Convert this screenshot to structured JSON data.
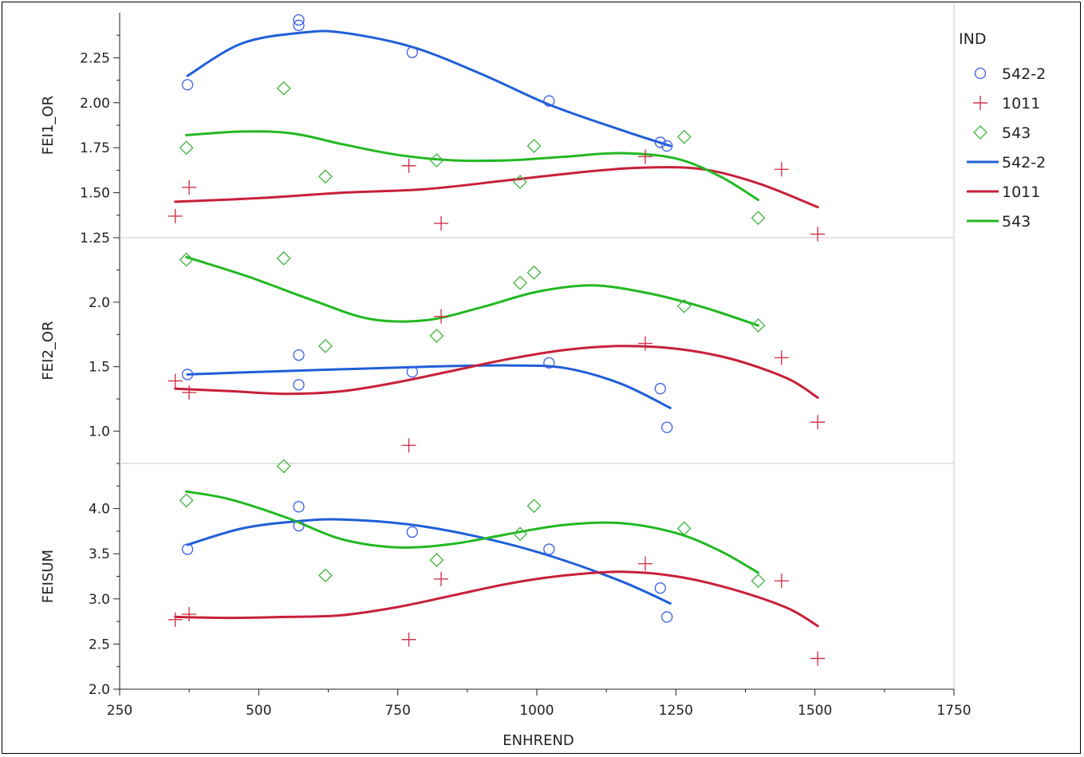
{
  "chart_data": {
    "type": "scatter",
    "xlabel": "ENHREND",
    "xlim": [
      250,
      1750
    ],
    "xticks": [
      "250",
      "500",
      "750",
      "1000",
      "1250",
      "1500",
      "1750"
    ],
    "legend": {
      "title": "IND",
      "placement": "right",
      "entries": [
        {
          "label": "542-2",
          "kind": "marker",
          "marker": "circle",
          "color": "#3b5ee6"
        },
        {
          "label": "1011",
          "kind": "marker",
          "marker": "plus",
          "color": "#d0364b"
        },
        {
          "label": "543",
          "kind": "marker",
          "marker": "diamond",
          "color": "#3fb43f"
        },
        {
          "label": "542-2",
          "kind": "line",
          "color": "#1f5fd8"
        },
        {
          "label": "1011",
          "kind": "line",
          "color": "#c8203a"
        },
        {
          "label": "543",
          "kind": "line",
          "color": "#22b822"
        }
      ]
    },
    "panels": [
      {
        "ylabel": "FEI1_OR",
        "ylim": [
          1.25,
          2.5
        ],
        "yticks": [
          "1.25",
          "1.50",
          "1.75",
          "2.00",
          "2.25"
        ],
        "series": [
          {
            "name": "542-2",
            "marker": "circle",
            "color": "#3b5ee6",
            "points": [
              [
                372,
                2.1
              ],
              [
                572,
                2.43
              ],
              [
                572,
                2.46
              ],
              [
                776,
                2.28
              ],
              [
                1022,
                2.01
              ],
              [
                1222,
                1.78
              ],
              [
                1234,
                1.76
              ]
            ],
            "fit": [
              [
                372,
                2.15
              ],
              [
                470,
                2.33
              ],
              [
                580,
                2.39
              ],
              [
                650,
                2.39
              ],
              [
                776,
                2.31
              ],
              [
                900,
                2.16
              ],
              [
                1022,
                1.99
              ],
              [
                1150,
                1.85
              ],
              [
                1240,
                1.76
              ]
            ]
          },
          {
            "name": "1011",
            "marker": "plus",
            "color": "#d0364b",
            "points": [
              [
                350,
                1.37
              ],
              [
                375,
                1.53
              ],
              [
                770,
                1.65
              ],
              [
                828,
                1.33
              ],
              [
                1195,
                1.7
              ],
              [
                1440,
                1.63
              ],
              [
                1505,
                1.27
              ]
            ],
            "fit": [
              [
                350,
                1.45
              ],
              [
                500,
                1.47
              ],
              [
                650,
                1.5
              ],
              [
                800,
                1.52
              ],
              [
                950,
                1.57
              ],
              [
                1100,
                1.62
              ],
              [
                1200,
                1.64
              ],
              [
                1300,
                1.63
              ],
              [
                1400,
                1.55
              ],
              [
                1505,
                1.42
              ]
            ]
          },
          {
            "name": "543",
            "marker": "diamond",
            "color": "#3fb43f",
            "points": [
              [
                370,
                1.75
              ],
              [
                545,
                2.08
              ],
              [
                620,
                1.59
              ],
              [
                820,
                1.68
              ],
              [
                970,
                1.56
              ],
              [
                995,
                1.76
              ],
              [
                1265,
                1.81
              ],
              [
                1398,
                1.36
              ]
            ],
            "fit": [
              [
                370,
                1.82
              ],
              [
                470,
                1.84
              ],
              [
                560,
                1.83
              ],
              [
                650,
                1.77
              ],
              [
                750,
                1.71
              ],
              [
                850,
                1.68
              ],
              [
                950,
                1.68
              ],
              [
                1050,
                1.7
              ],
              [
                1150,
                1.72
              ],
              [
                1250,
                1.69
              ],
              [
                1330,
                1.59
              ],
              [
                1398,
                1.46
              ]
            ]
          }
        ]
      },
      {
        "ylabel": "FEI2_OR",
        "ylim": [
          0.75,
          2.5
        ],
        "yticks": [
          "1.0",
          "1.5",
          "2.0"
        ],
        "series": [
          {
            "name": "542-2",
            "marker": "circle",
            "color": "#3b5ee6",
            "points": [
              [
                372,
                1.44
              ],
              [
                572,
                1.59
              ],
              [
                572,
                1.36
              ],
              [
                776,
                1.46
              ],
              [
                1022,
                1.53
              ],
              [
                1222,
                1.33
              ],
              [
                1234,
                1.03
              ]
            ],
            "fit": [
              [
                372,
                1.44
              ],
              [
                500,
                1.46
              ],
              [
                650,
                1.48
              ],
              [
                800,
                1.5
              ],
              [
                950,
                1.51
              ],
              [
                1050,
                1.49
              ],
              [
                1150,
                1.37
              ],
              [
                1240,
                1.18
              ]
            ]
          },
          {
            "name": "1011",
            "marker": "plus",
            "color": "#d0364b",
            "points": [
              [
                350,
                1.39
              ],
              [
                375,
                1.3
              ],
              [
                770,
                0.89
              ],
              [
                828,
                1.89
              ],
              [
                1195,
                1.68
              ],
              [
                1440,
                1.57
              ],
              [
                1505,
                1.07
              ]
            ],
            "fit": [
              [
                350,
                1.33
              ],
              [
                450,
                1.31
              ],
              [
                550,
                1.29
              ],
              [
                650,
                1.31
              ],
              [
                750,
                1.38
              ],
              [
                850,
                1.47
              ],
              [
                950,
                1.56
              ],
              [
                1050,
                1.63
              ],
              [
                1150,
                1.66
              ],
              [
                1250,
                1.64
              ],
              [
                1350,
                1.56
              ],
              [
                1450,
                1.41
              ],
              [
                1505,
                1.26
              ]
            ]
          },
          {
            "name": "543",
            "marker": "diamond",
            "color": "#3fb43f",
            "points": [
              [
                370,
                2.33
              ],
              [
                545,
                2.34
              ],
              [
                620,
                1.66
              ],
              [
                820,
                1.74
              ],
              [
                970,
                2.15
              ],
              [
                995,
                2.23
              ],
              [
                1265,
                1.97
              ],
              [
                1398,
                1.82
              ]
            ],
            "fit": [
              [
                370,
                2.35
              ],
              [
                480,
                2.2
              ],
              [
                600,
                2.01
              ],
              [
                700,
                1.87
              ],
              [
                800,
                1.86
              ],
              [
                900,
                1.96
              ],
              [
                1000,
                2.08
              ],
              [
                1100,
                2.13
              ],
              [
                1200,
                2.07
              ],
              [
                1300,
                1.96
              ],
              [
                1398,
                1.82
              ]
            ]
          }
        ]
      },
      {
        "ylabel": "FEISUM",
        "ylim": [
          2.0,
          4.5
        ],
        "yticks": [
          "2.0",
          "2.5",
          "3.0",
          "3.5",
          "4.0"
        ],
        "series": [
          {
            "name": "542-2",
            "marker": "circle",
            "color": "#3b5ee6",
            "points": [
              [
                372,
                3.55
              ],
              [
                572,
                4.02
              ],
              [
                572,
                3.81
              ],
              [
                776,
                3.74
              ],
              [
                1022,
                3.55
              ],
              [
                1222,
                3.12
              ],
              [
                1234,
                2.8
              ]
            ],
            "fit": [
              [
                372,
                3.6
              ],
              [
                470,
                3.78
              ],
              [
                570,
                3.86
              ],
              [
                650,
                3.88
              ],
              [
                776,
                3.82
              ],
              [
                900,
                3.68
              ],
              [
                1022,
                3.48
              ],
              [
                1150,
                3.2
              ],
              [
                1240,
                2.95
              ]
            ]
          },
          {
            "name": "1011",
            "marker": "plus",
            "color": "#d0364b",
            "points": [
              [
                350,
                2.77
              ],
              [
                375,
                2.83
              ],
              [
                770,
                2.55
              ],
              [
                828,
                3.22
              ],
              [
                1195,
                3.39
              ],
              [
                1440,
                3.2
              ],
              [
                1505,
                2.34
              ]
            ],
            "fit": [
              [
                350,
                2.8
              ],
              [
                450,
                2.79
              ],
              [
                550,
                2.8
              ],
              [
                650,
                2.82
              ],
              [
                750,
                2.91
              ],
              [
                850,
                3.04
              ],
              [
                950,
                3.17
              ],
              [
                1050,
                3.26
              ],
              [
                1150,
                3.3
              ],
              [
                1250,
                3.25
              ],
              [
                1350,
                3.11
              ],
              [
                1450,
                2.9
              ],
              [
                1505,
                2.7
              ]
            ]
          },
          {
            "name": "543",
            "marker": "diamond",
            "color": "#3fb43f",
            "points": [
              [
                370,
                4.09
              ],
              [
                545,
                4.47
              ],
              [
                620,
                3.26
              ],
              [
                820,
                3.43
              ],
              [
                970,
                3.72
              ],
              [
                995,
                4.03
              ],
              [
                1265,
                3.78
              ],
              [
                1398,
                3.2
              ]
            ],
            "fit": [
              [
                370,
                4.19
              ],
              [
                450,
                4.1
              ],
              [
                550,
                3.9
              ],
              [
                650,
                3.66
              ],
              [
                750,
                3.57
              ],
              [
                850,
                3.61
              ],
              [
                950,
                3.72
              ],
              [
                1050,
                3.82
              ],
              [
                1150,
                3.84
              ],
              [
                1250,
                3.73
              ],
              [
                1330,
                3.53
              ],
              [
                1398,
                3.29
              ]
            ]
          }
        ]
      }
    ]
  }
}
